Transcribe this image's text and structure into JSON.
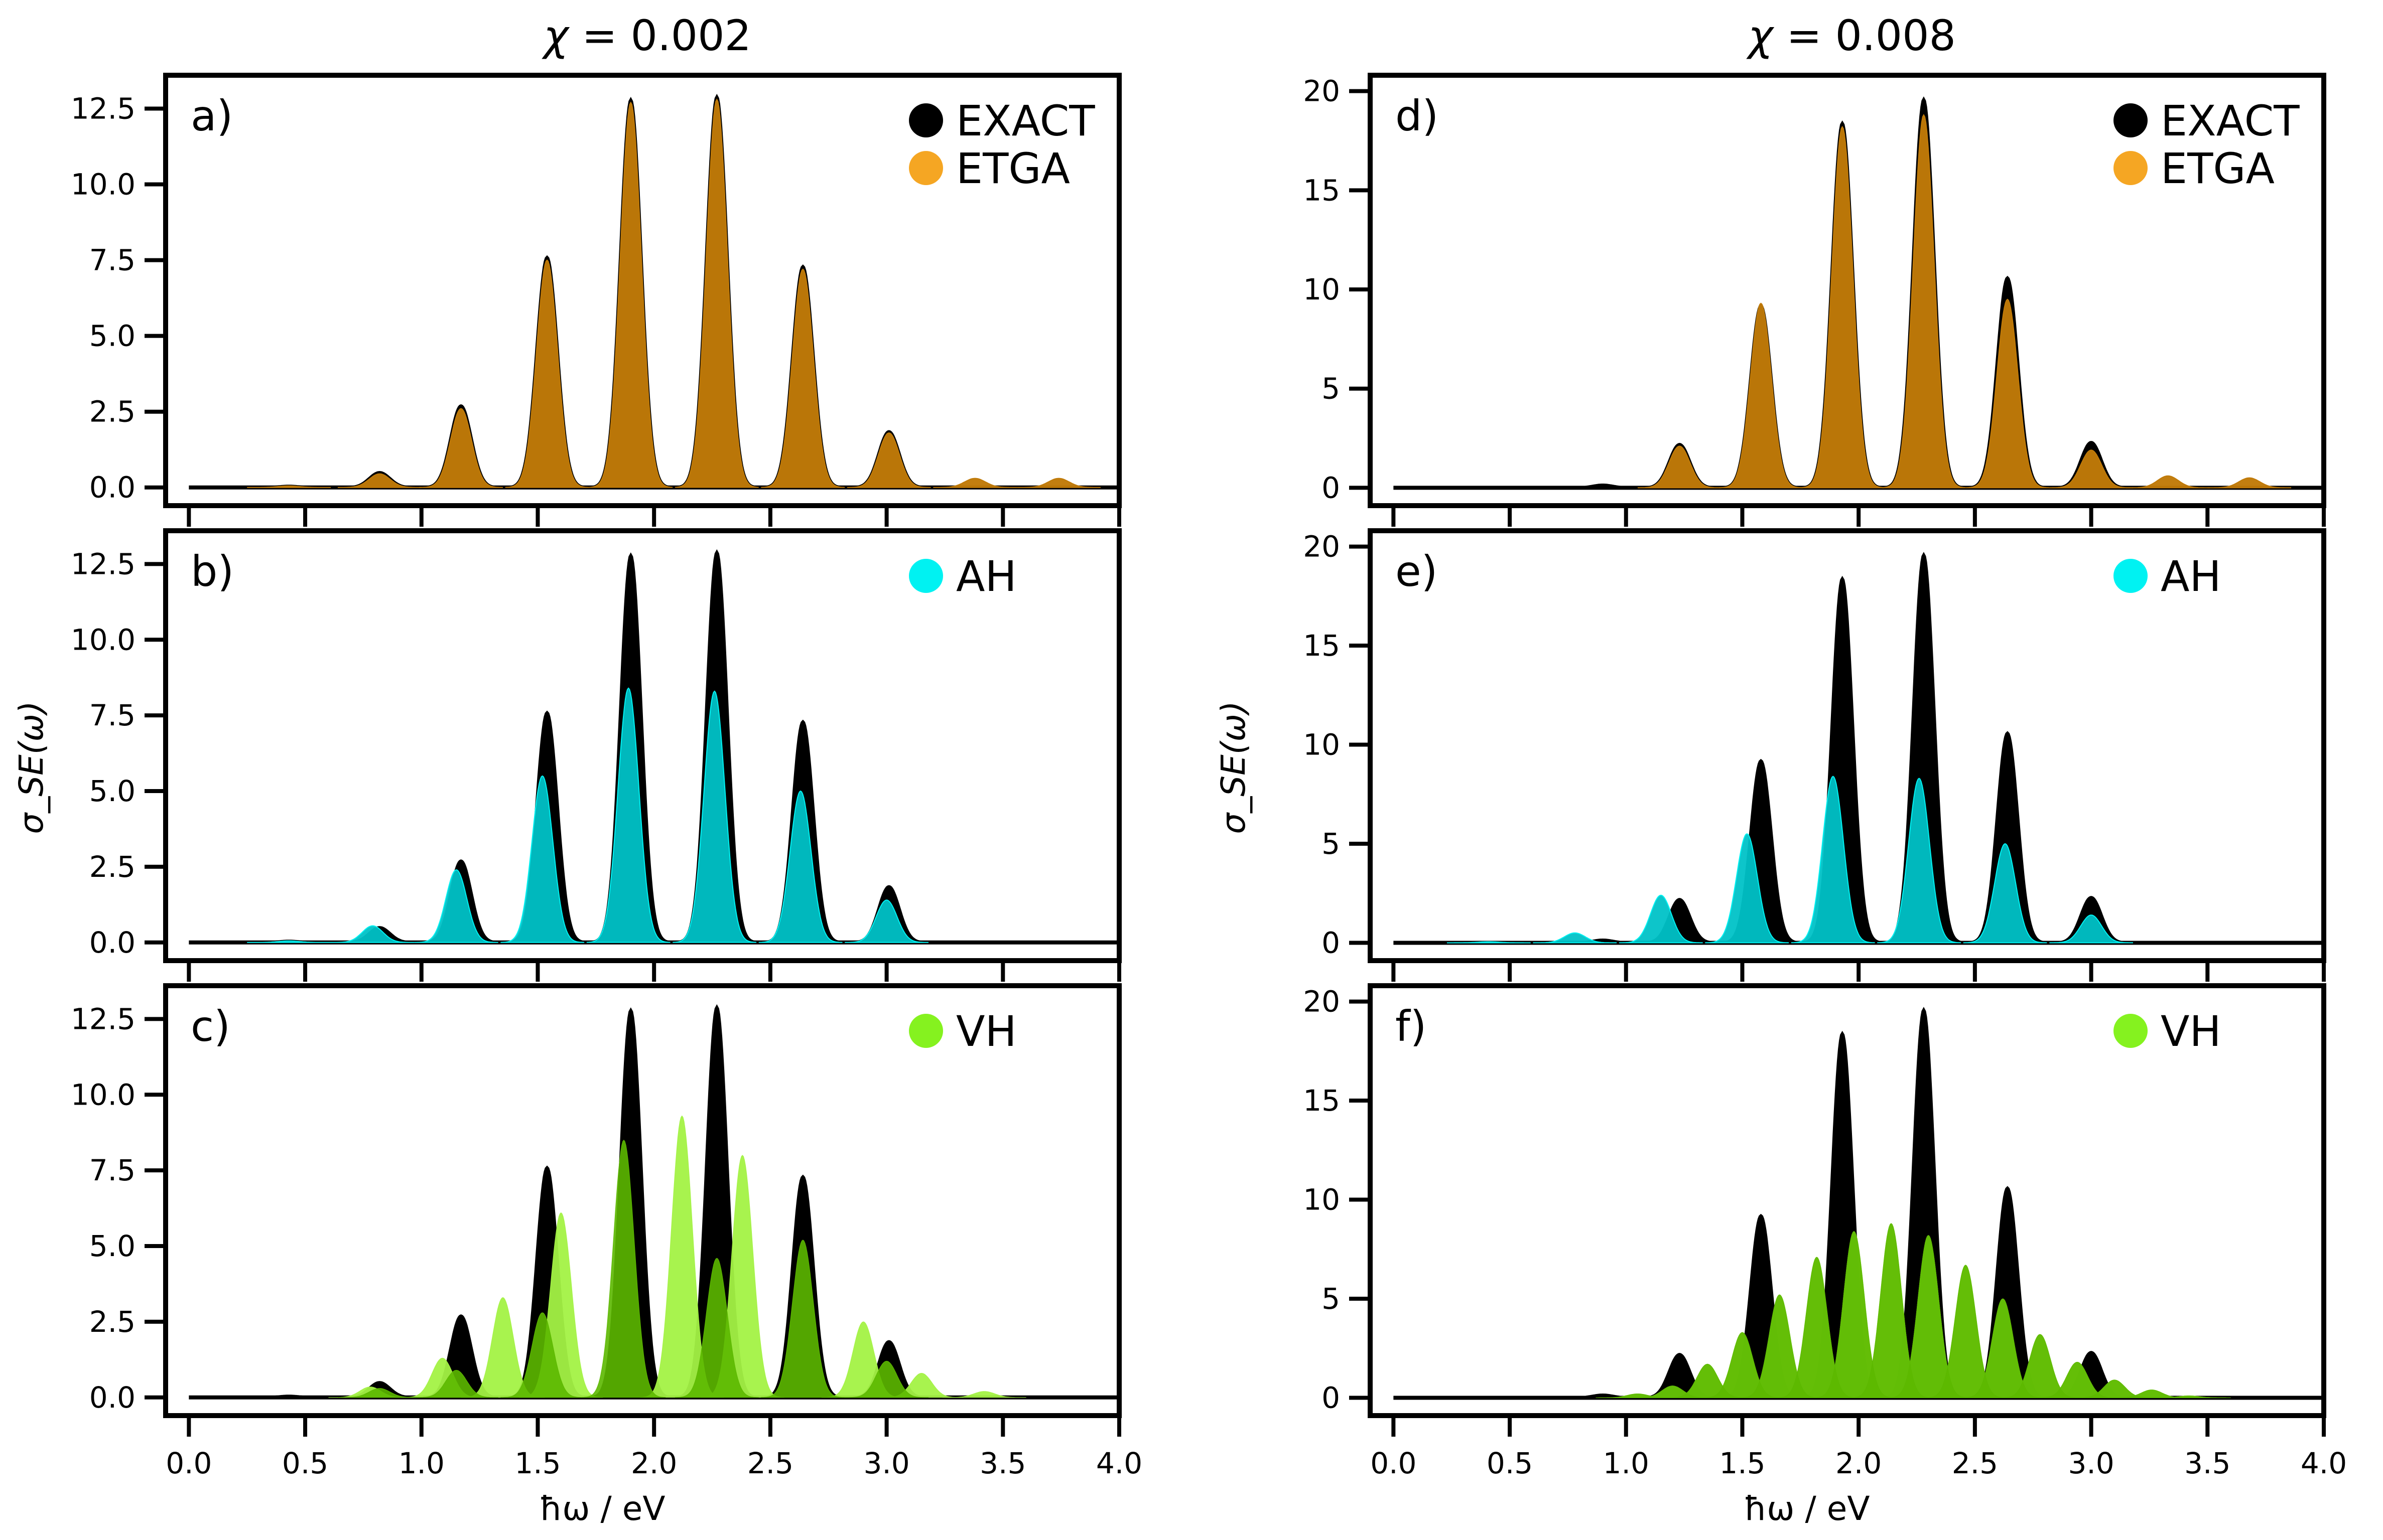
{
  "figure": {
    "columns": [
      {
        "title_prefix": "χ = ",
        "chi": "0.002",
        "ylabel": "σ_SE(ω)",
        "xlabel": "ħω / eV"
      },
      {
        "title_prefix": "χ = ",
        "chi": "0.008",
        "ylabel": "σ_SE(ω)",
        "xlabel": "ħω / eV"
      }
    ],
    "colors": {
      "EXACT": "#000000",
      "ETGA": "#f5a623",
      "ETGA_fill": "#c07a08",
      "AH": "#00f2f2",
      "AH_fill": "#00c2c7",
      "VH": "#85f21f",
      "VH_fill": "#5cb800",
      "VH_fill_alt": "#a3f244"
    }
  },
  "chart_data": [
    {
      "panel": "a)",
      "type": "area",
      "column": 0,
      "row": 0,
      "xlim": [
        -0.1,
        4.0
      ],
      "ylim": [
        -0.6,
        13.6
      ],
      "xticks": [
        0.0,
        0.5,
        1.0,
        1.5,
        2.0,
        2.5,
        3.0,
        3.5,
        4.0
      ],
      "yticks": [
        0.0,
        2.5,
        5.0,
        7.5,
        10.0,
        12.5
      ],
      "ytick_labels": [
        "0.0",
        "2.5",
        "5.0",
        "7.5",
        "10.0",
        "12.5"
      ],
      "legend": [
        "EXACT",
        "ETGA"
      ],
      "legend_loc": "top-right",
      "peak_width": 0.045,
      "series": [
        {
          "name": "EXACT",
          "peaks": [
            [
              0.43,
              0.05
            ],
            [
              0.82,
              0.5
            ],
            [
              1.17,
              2.7
            ],
            [
              1.54,
              7.6
            ],
            [
              1.9,
              12.8
            ],
            [
              2.27,
              12.9
            ],
            [
              2.64,
              7.3
            ],
            [
              3.01,
              1.85
            ]
          ]
        },
        {
          "name": "ETGA",
          "peaks": [
            [
              0.43,
              0.05
            ],
            [
              0.82,
              0.45
            ],
            [
              1.17,
              2.6
            ],
            [
              1.54,
              7.5
            ],
            [
              1.9,
              12.7
            ],
            [
              2.27,
              12.8
            ],
            [
              2.64,
              7.2
            ],
            [
              3.01,
              1.8
            ],
            [
              3.38,
              0.3
            ],
            [
              3.74,
              0.3
            ]
          ]
        }
      ]
    },
    {
      "panel": "b)",
      "type": "area",
      "column": 0,
      "row": 1,
      "xlim": [
        -0.1,
        4.0
      ],
      "ylim": [
        -0.6,
        13.6
      ],
      "xticks": [
        0.0,
        0.5,
        1.0,
        1.5,
        2.0,
        2.5,
        3.0,
        3.5,
        4.0
      ],
      "yticks": [
        0.0,
        2.5,
        5.0,
        7.5,
        10.0,
        12.5
      ],
      "ytick_labels": [
        "0.0",
        "2.5",
        "5.0",
        "7.5",
        "10.0",
        "12.5"
      ],
      "legend": [
        "AH"
      ],
      "legend_loc": "top-right",
      "peak_width": 0.045,
      "series": [
        {
          "name": "EXACT",
          "peaks": [
            [
              0.43,
              0.05
            ],
            [
              0.82,
              0.5
            ],
            [
              1.17,
              2.7
            ],
            [
              1.54,
              7.6
            ],
            [
              1.9,
              12.8
            ],
            [
              2.27,
              12.9
            ],
            [
              2.64,
              7.3
            ],
            [
              3.01,
              1.85
            ]
          ]
        },
        {
          "name": "AH",
          "peaks": [
            [
              0.43,
              0.05
            ],
            [
              0.79,
              0.55
            ],
            [
              1.15,
              2.4
            ],
            [
              1.52,
              5.5
            ],
            [
              1.89,
              8.4
            ],
            [
              2.26,
              8.3
            ],
            [
              2.63,
              5.0
            ],
            [
              3.0,
              1.4
            ]
          ]
        }
      ]
    },
    {
      "panel": "c)",
      "type": "area",
      "column": 0,
      "row": 2,
      "xlim": [
        -0.1,
        4.0
      ],
      "ylim": [
        -0.6,
        13.6
      ],
      "xticks": [
        0.0,
        0.5,
        1.0,
        1.5,
        2.0,
        2.5,
        3.0,
        3.5,
        4.0
      ],
      "xtick_labels": [
        "0.0",
        "0.5",
        "1.0",
        "1.5",
        "2.0",
        "2.5",
        "3.0",
        "3.5",
        "4.0"
      ],
      "yticks": [
        0.0,
        2.5,
        5.0,
        7.5,
        10.0,
        12.5
      ],
      "ytick_labels": [
        "0.0",
        "2.5",
        "5.0",
        "7.5",
        "10.0",
        "12.5"
      ],
      "legend": [
        "VH"
      ],
      "legend_loc": "top-right",
      "peak_width": 0.045,
      "series": [
        {
          "name": "EXACT",
          "peaks": [
            [
              0.43,
              0.05
            ],
            [
              0.82,
              0.5
            ],
            [
              1.17,
              2.7
            ],
            [
              1.54,
              7.6
            ],
            [
              1.9,
              12.8
            ],
            [
              2.27,
              12.9
            ],
            [
              2.64,
              7.3
            ],
            [
              3.01,
              1.85
            ]
          ]
        },
        {
          "name": "VH_side",
          "peaks": [
            [
              0.78,
              0.35
            ],
            [
              1.09,
              1.3
            ],
            [
              1.35,
              3.3
            ],
            [
              1.6,
              6.1
            ],
            [
              2.12,
              9.3
            ],
            [
              2.38,
              8.0
            ],
            [
              2.9,
              2.5
            ],
            [
              3.15,
              0.8
            ],
            [
              3.42,
              0.2
            ]
          ]
        },
        {
          "name": "VH",
          "peaks": [
            [
              0.82,
              0.3
            ],
            [
              1.15,
              0.9
            ],
            [
              1.52,
              2.8
            ],
            [
              1.87,
              8.5
            ],
            [
              2.27,
              4.6
            ],
            [
              2.64,
              5.2
            ],
            [
              3.0,
              1.2
            ]
          ]
        }
      ]
    },
    {
      "panel": "d)",
      "type": "area",
      "column": 1,
      "row": 0,
      "xlim": [
        -0.1,
        4.0
      ],
      "ylim": [
        -0.9,
        20.8
      ],
      "xticks": [
        0.0,
        0.5,
        1.0,
        1.5,
        2.0,
        2.5,
        3.0,
        3.5,
        4.0
      ],
      "yticks": [
        0,
        5,
        10,
        15,
        20
      ],
      "ytick_labels": [
        "0",
        "5",
        "10",
        "15",
        "20"
      ],
      "legend": [
        "EXACT",
        "ETGA"
      ],
      "legend_loc": "top-right",
      "peak_width": 0.045,
      "series": [
        {
          "name": "EXACT",
          "peaks": [
            [
              0.9,
              0.15
            ],
            [
              1.23,
              2.2
            ],
            [
              1.58,
              9.2
            ],
            [
              1.93,
              18.4
            ],
            [
              2.28,
              19.6
            ],
            [
              2.64,
              10.6
            ],
            [
              3.0,
              2.3
            ]
          ]
        },
        {
          "name": "ETGA",
          "peaks": [
            [
              1.23,
              2.1
            ],
            [
              1.58,
              9.3
            ],
            [
              1.93,
              18.2
            ],
            [
              2.28,
              18.8
            ],
            [
              2.64,
              9.5
            ],
            [
              3.0,
              1.9
            ],
            [
              3.33,
              0.6
            ],
            [
              3.68,
              0.5
            ]
          ]
        }
      ]
    },
    {
      "panel": "e)",
      "type": "area",
      "column": 1,
      "row": 1,
      "xlim": [
        -0.1,
        4.0
      ],
      "ylim": [
        -0.9,
        20.8
      ],
      "xticks": [
        0.0,
        0.5,
        1.0,
        1.5,
        2.0,
        2.5,
        3.0,
        3.5,
        4.0
      ],
      "yticks": [
        0,
        5,
        10,
        15,
        20
      ],
      "ytick_labels": [
        "0",
        "5",
        "10",
        "15",
        "20"
      ],
      "legend": [
        "AH"
      ],
      "legend_loc": "top-right",
      "peak_width": 0.045,
      "series": [
        {
          "name": "EXACT",
          "peaks": [
            [
              0.9,
              0.15
            ],
            [
              1.23,
              2.2
            ],
            [
              1.58,
              9.2
            ],
            [
              1.93,
              18.4
            ],
            [
              2.28,
              19.6
            ],
            [
              2.64,
              10.6
            ],
            [
              3.0,
              2.3
            ]
          ]
        },
        {
          "name": "AH",
          "peaks": [
            [
              0.41,
              0.05
            ],
            [
              0.78,
              0.5
            ],
            [
              1.15,
              2.4
            ],
            [
              1.52,
              5.5
            ],
            [
              1.89,
              8.4
            ],
            [
              2.26,
              8.3
            ],
            [
              2.63,
              5.0
            ],
            [
              3.0,
              1.4
            ]
          ]
        }
      ]
    },
    {
      "panel": "f)",
      "type": "area",
      "column": 1,
      "row": 2,
      "xlim": [
        -0.1,
        4.0
      ],
      "ylim": [
        -0.9,
        20.8
      ],
      "xticks": [
        0.0,
        0.5,
        1.0,
        1.5,
        2.0,
        2.5,
        3.0,
        3.5,
        4.0
      ],
      "xtick_labels": [
        "0.0",
        "0.5",
        "1.0",
        "1.5",
        "2.0",
        "2.5",
        "3.0",
        "3.5",
        "4.0"
      ],
      "yticks": [
        0,
        5,
        10,
        15,
        20
      ],
      "ytick_labels": [
        "0",
        "5",
        "10",
        "15",
        "20"
      ],
      "legend": [
        "VH"
      ],
      "legend_loc": "top-right",
      "peak_width": 0.045,
      "series": [
        {
          "name": "EXACT",
          "peaks": [
            [
              0.9,
              0.15
            ],
            [
              1.23,
              2.2
            ],
            [
              1.58,
              9.2
            ],
            [
              1.93,
              18.4
            ],
            [
              2.28,
              19.6
            ],
            [
              2.64,
              10.6
            ],
            [
              3.0,
              2.3
            ]
          ]
        },
        {
          "name": "VH_side",
          "peaks": [
            [
              1.05,
              0.2
            ],
            [
              1.2,
              0.6
            ],
            [
              1.35,
              1.7
            ],
            [
              1.5,
              3.3
            ],
            [
              1.66,
              5.2
            ],
            [
              1.82,
              7.1
            ],
            [
              1.98,
              8.4
            ],
            [
              2.14,
              8.8
            ],
            [
              2.3,
              8.2
            ],
            [
              2.46,
              6.7
            ],
            [
              2.62,
              5.0
            ],
            [
              2.78,
              3.2
            ],
            [
              2.94,
              1.8
            ],
            [
              3.1,
              0.9
            ],
            [
              3.26,
              0.4
            ],
            [
              3.42,
              0.1
            ]
          ]
        },
        {
          "name": "VH",
          "peaks": [
            [
              1.05,
              0.2
            ],
            [
              1.2,
              0.6
            ],
            [
              1.35,
              1.7
            ],
            [
              1.5,
              3.3
            ],
            [
              1.66,
              5.2
            ],
            [
              1.82,
              7.1
            ],
            [
              1.98,
              8.4
            ],
            [
              2.14,
              8.8
            ],
            [
              2.3,
              8.2
            ],
            [
              2.46,
              6.7
            ],
            [
              2.62,
              5.0
            ],
            [
              2.78,
              3.2
            ],
            [
              2.94,
              1.8
            ],
            [
              3.1,
              0.9
            ],
            [
              3.26,
              0.4
            ],
            [
              3.42,
              0.1
            ]
          ]
        }
      ]
    }
  ]
}
